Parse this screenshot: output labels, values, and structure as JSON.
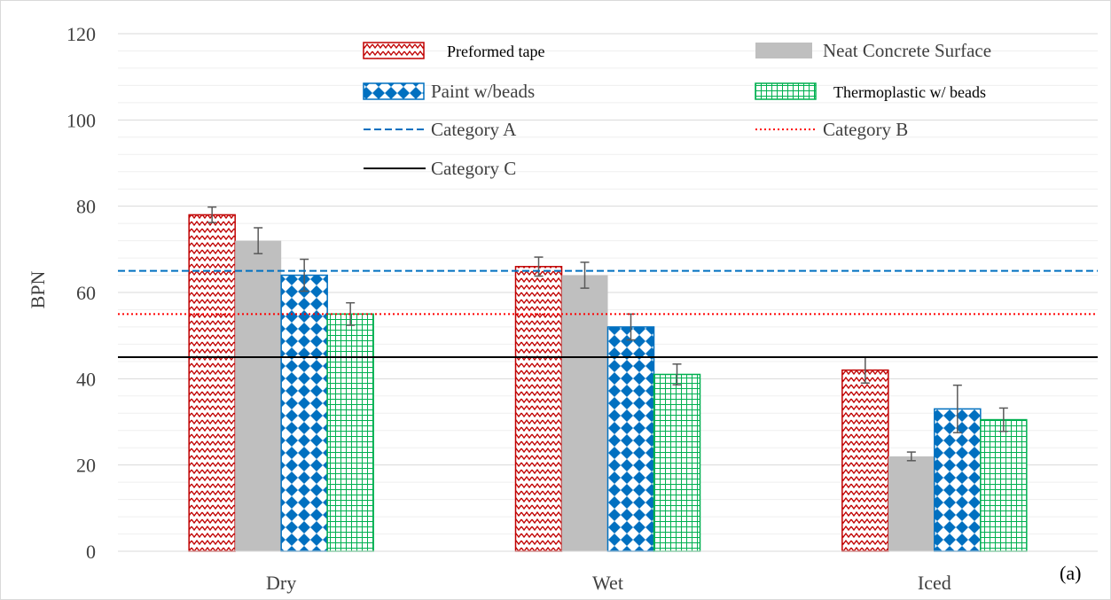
{
  "chart_data": {
    "type": "bar",
    "ylabel": "BPN",
    "xlabel": "",
    "ylim": [
      0,
      120
    ],
    "yticks": [
      0,
      20,
      40,
      60,
      80,
      100,
      120
    ],
    "grid": true,
    "legend_position": "top",
    "categories": [
      "Dry",
      "Wet",
      "Iced"
    ],
    "panel_label": "(a)",
    "series": [
      {
        "name": "Preformed tape",
        "color": "#c00000",
        "pattern": "zigzag",
        "values": [
          78,
          66,
          42
        ],
        "errors": [
          1.8,
          2.2,
          3.0
        ]
      },
      {
        "name": "Neat Concrete Surface",
        "color": "#bfbfbf",
        "pattern": "solid",
        "values": [
          72,
          64,
          22
        ],
        "errors": [
          3.0,
          3.0,
          1.0
        ]
      },
      {
        "name": "Paint w/beads",
        "color": "#0070c0",
        "pattern": "diamond",
        "values": [
          64,
          52,
          33
        ],
        "errors": [
          3.7,
          3.0,
          5.5
        ]
      },
      {
        "name": "Thermoplastic w/ beads",
        "color": "#00b050",
        "pattern": "grid",
        "values": [
          55,
          41,
          30.5
        ],
        "errors": [
          2.6,
          2.4,
          2.7
        ]
      }
    ],
    "reference_lines": [
      {
        "name": "Category A",
        "value": 65,
        "color": "#0070c0",
        "style": "dashed"
      },
      {
        "name": "Category B",
        "value": 55,
        "color": "#ff0000",
        "style": "dotted"
      },
      {
        "name": "Category C",
        "value": 45,
        "color": "#000000",
        "style": "solid"
      }
    ]
  }
}
